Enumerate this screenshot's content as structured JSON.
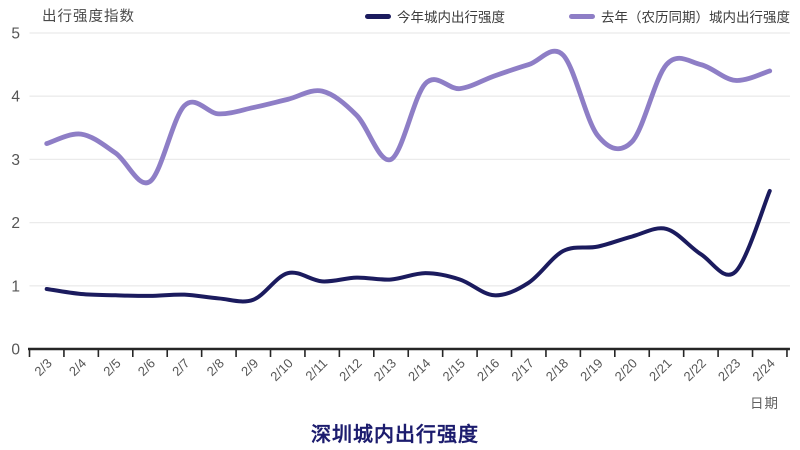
{
  "chart_data": {
    "type": "line",
    "title": "深圳城内出行强度",
    "title_color": "#1c1c6e",
    "y_axis_label": "出行强度指数",
    "x_axis_label": "日期",
    "ylim": [
      0,
      5
    ],
    "y_ticks": [
      "0",
      "1",
      "2",
      "3",
      "4",
      "5"
    ],
    "grid": "horizontal",
    "legend_position": "top-right",
    "smooth": true,
    "categories": [
      "2/3",
      "2/4",
      "2/5",
      "2/6",
      "2/7",
      "2/8",
      "2/9",
      "2/10",
      "2/11",
      "2/12",
      "2/13",
      "2/14",
      "2/15",
      "2/16",
      "2/17",
      "2/18",
      "2/19",
      "2/20",
      "2/21",
      "2/22",
      "2/23",
      "2/24"
    ],
    "series": [
      {
        "name": "今年城内出行强度",
        "color": "#1b1b5e",
        "values": [
          0.95,
          0.87,
          0.85,
          0.84,
          0.86,
          0.8,
          0.78,
          1.2,
          1.07,
          1.13,
          1.1,
          1.2,
          1.1,
          0.85,
          1.05,
          1.55,
          1.62,
          1.78,
          1.9,
          1.5,
          1.22,
          2.5
        ]
      },
      {
        "name": "去年（农历同期）城内出行强度",
        "color": "#8e7ec6",
        "values": [
          3.25,
          3.4,
          3.1,
          2.65,
          3.85,
          3.72,
          3.82,
          3.95,
          4.08,
          3.7,
          3.0,
          4.2,
          4.12,
          4.32,
          4.5,
          4.65,
          3.38,
          3.28,
          4.5,
          4.5,
          4.25,
          4.4
        ]
      }
    ]
  },
  "style_colors": {
    "grid_line": "#ebebeb",
    "axis_line": "#262626",
    "tick_label": "#555555"
  }
}
